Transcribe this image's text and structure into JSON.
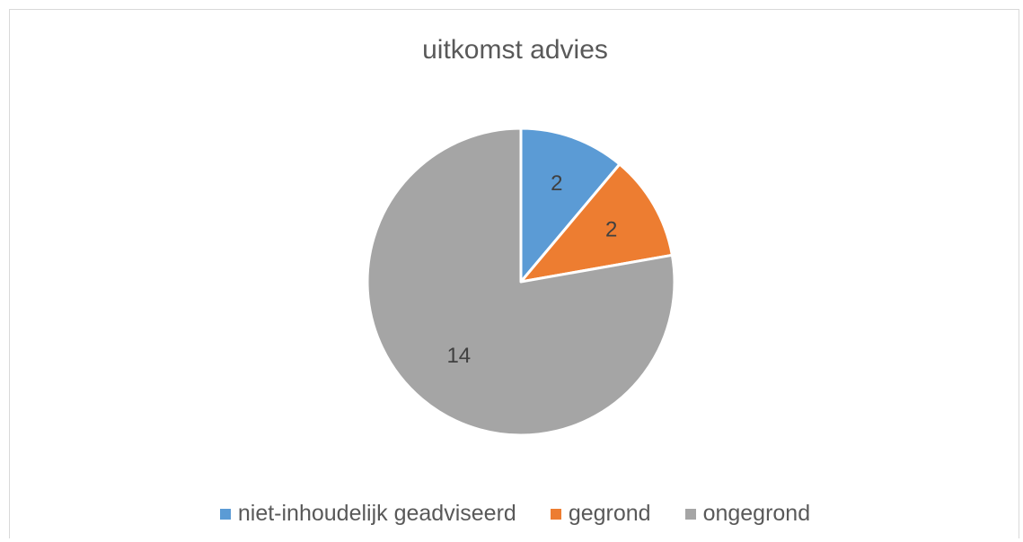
{
  "chart_data": {
    "type": "pie",
    "title": "uitkomst advies",
    "categories": [
      "niet-inhoudelijk geadviseerd",
      "gegrond",
      "ongegrond"
    ],
    "values": [
      2,
      2,
      14
    ],
    "data_labels": [
      "2",
      "2",
      "14"
    ],
    "colors": [
      "#5b9bd5",
      "#ed7d31",
      "#a5a5a5"
    ],
    "legend_position": "bottom"
  }
}
